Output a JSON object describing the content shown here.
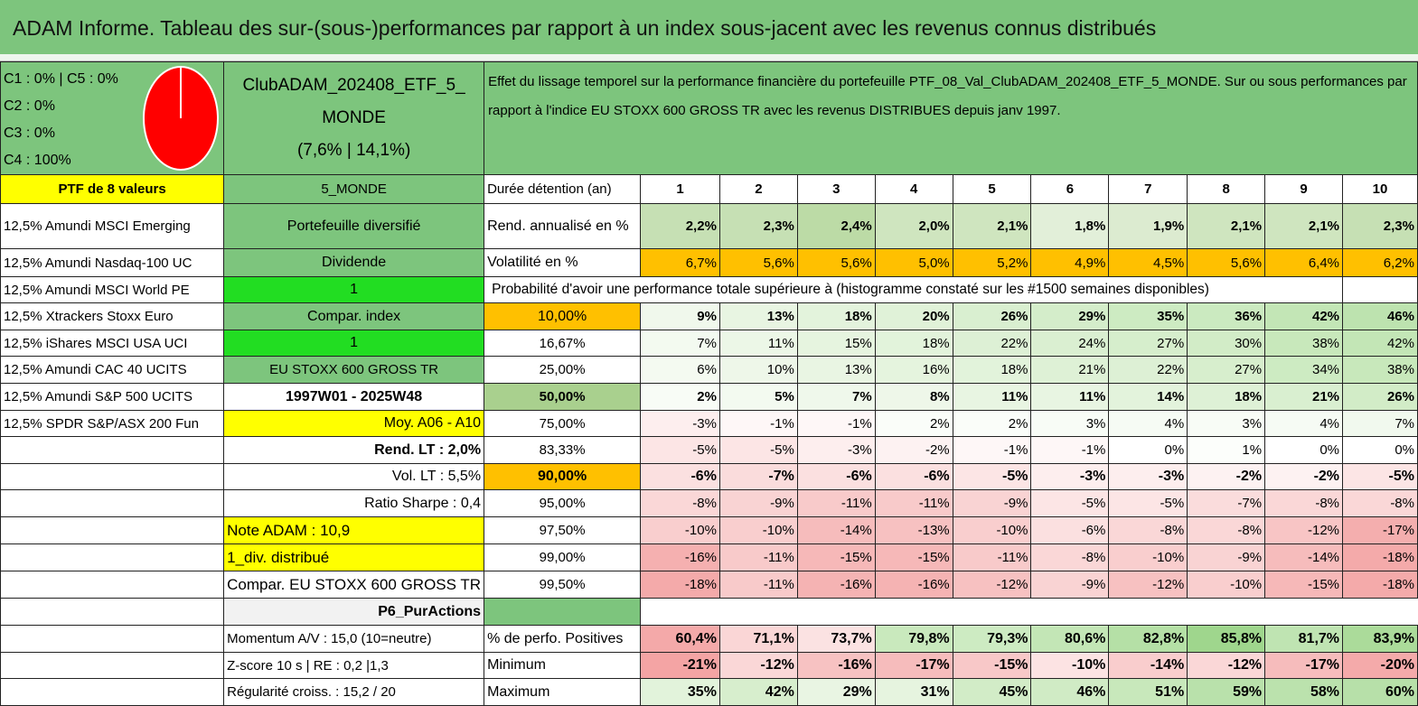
{
  "title": "ADAM Informe. Tableau des sur-(sous-)performances par rapport à un index sous-jacent avec les revenus connus distribués",
  "allocation": {
    "lines": [
      "C1 : 0% | C5 : 0%",
      "C2 : 0%",
      "C3 : 0%",
      "C4 : 100%"
    ],
    "pie_color": "#ff0000",
    "c4_share": 1.0
  },
  "portfolio": {
    "name_line1": "ClubADAM_202408_ETF_5_",
    "name_line2": "MONDE",
    "name_line3": "(7,6% | 14,1%)",
    "header": "PTF de 8 valeurs",
    "code": "5_MONDE",
    "holdings": [
      "12,5% Amundi MSCI Emerging",
      "12,5% Amundi Nasdaq-100 UC",
      "12,5% Amundi MSCI World PE",
      "12,5% Xtrackers Stoxx Euro",
      "12,5% iShares MSCI USA UCI",
      "12,5% Amundi CAC 40 UCITS",
      "12,5% Amundi S&P 500 UCITS",
      "12,5% SPDR S&P/ASX 200 Fun"
    ]
  },
  "description": "Effet du lissage temporel sur la performance financière du portefeuille PTF_08_Val_ClubADAM_202408_ETF_5_MONDE. Sur ou sous performances par rapport à l'indice EU STOXX 600 GROSS TR avec les revenus DISTRIBUES depuis janv 1997.",
  "info": {
    "diversified": "Portefeuille diversifié",
    "dividend": "Dividende",
    "one_a": "1",
    "compar_index": "Compar. index",
    "one_b": "1",
    "index_name": "EU STOXX 600 GROSS TR",
    "period": "1997W01 - 2025W48",
    "moy": "Moy. A06 - A10",
    "rend_lt": "Rend. LT : 2,0%",
    "vol_lt": "Vol. LT : 5,5%",
    "sharpe": "Ratio Sharpe : 0,4",
    "note": "Note ADAM : 10,9",
    "div_distrib": "1_div. distribué",
    "compar_full": "Compar. EU STOXX 600 GROSS TR",
    "p6": "P6_PurActions",
    "momentum": "Momentum A/V : 15,0 (10=neutre)",
    "zscore": "Z-score 10 s | RE : 0,2 |1,3",
    "regularite": "Régularité croiss. : 15,2 / 20"
  },
  "stats": {
    "duree_label": "Durée détention (an)",
    "years": [
      "1",
      "2",
      "3",
      "4",
      "5",
      "6",
      "7",
      "8",
      "9",
      "10"
    ],
    "rend_label": "Rend. annualisé en %",
    "rend": [
      "2,2%",
      "2,3%",
      "2,4%",
      "2,0%",
      "2,1%",
      "1,8%",
      "1,9%",
      "2,1%",
      "2,1%",
      "2,3%"
    ],
    "vol_label": "Volatilité en %",
    "vol": [
      "6,7%",
      "5,6%",
      "5,6%",
      "5,0%",
      "5,2%",
      "4,9%",
      "4,5%",
      "5,6%",
      "6,4%",
      "6,2%"
    ],
    "prob_label": "Probabilité d'avoir une performance totale supérieure à (histogramme constaté sur les #1500 semaines disponibles)"
  },
  "percentiles": [
    {
      "label": "10,00%",
      "values": [
        "9%",
        "13%",
        "18%",
        "20%",
        "26%",
        "29%",
        "35%",
        "36%",
        "42%",
        "46%"
      ]
    },
    {
      "label": "16,67%",
      "values": [
        "7%",
        "11%",
        "15%",
        "18%",
        "22%",
        "24%",
        "27%",
        "30%",
        "38%",
        "42%"
      ]
    },
    {
      "label": "25,00%",
      "values": [
        "6%",
        "10%",
        "13%",
        "16%",
        "18%",
        "21%",
        "22%",
        "27%",
        "34%",
        "38%"
      ]
    },
    {
      "label": "50,00%",
      "values": [
        "2%",
        "5%",
        "7%",
        "8%",
        "11%",
        "11%",
        "14%",
        "18%",
        "21%",
        "26%"
      ]
    },
    {
      "label": "75,00%",
      "values": [
        "-3%",
        "-1%",
        "-1%",
        "2%",
        "2%",
        "3%",
        "4%",
        "3%",
        "4%",
        "7%"
      ]
    },
    {
      "label": "83,33%",
      "values": [
        "-5%",
        "-5%",
        "-3%",
        "-2%",
        "-1%",
        "-1%",
        "0%",
        "1%",
        "0%",
        "0%"
      ]
    },
    {
      "label": "90,00%",
      "values": [
        "-6%",
        "-7%",
        "-6%",
        "-6%",
        "-5%",
        "-3%",
        "-3%",
        "-2%",
        "-2%",
        "-5%"
      ]
    },
    {
      "label": "95,00%",
      "values": [
        "-8%",
        "-9%",
        "-11%",
        "-11%",
        "-9%",
        "-5%",
        "-5%",
        "-7%",
        "-8%",
        "-8%"
      ]
    },
    {
      "label": "97,50%",
      "values": [
        "-10%",
        "-10%",
        "-14%",
        "-13%",
        "-10%",
        "-6%",
        "-8%",
        "-8%",
        "-12%",
        "-17%"
      ]
    },
    {
      "label": "99,00%",
      "values": [
        "-16%",
        "-11%",
        "-15%",
        "-15%",
        "-11%",
        "-8%",
        "-10%",
        "-9%",
        "-14%",
        "-18%"
      ]
    },
    {
      "label": "99,50%",
      "values": [
        "-18%",
        "-11%",
        "-16%",
        "-16%",
        "-12%",
        "-9%",
        "-12%",
        "-10%",
        "-15%",
        "-18%"
      ]
    }
  ],
  "summary": {
    "pos_label": "% de perfo. Positives",
    "pos": [
      "60,4%",
      "71,1%",
      "73,7%",
      "79,8%",
      "79,3%",
      "80,6%",
      "82,8%",
      "85,8%",
      "81,7%",
      "83,9%"
    ],
    "min_label": "Minimum",
    "min": [
      "-21%",
      "-12%",
      "-16%",
      "-17%",
      "-15%",
      "-10%",
      "-14%",
      "-12%",
      "-17%",
      "-20%"
    ],
    "max_label": "Maximum",
    "max": [
      "35%",
      "42%",
      "29%",
      "31%",
      "45%",
      "46%",
      "51%",
      "59%",
      "58%",
      "60%"
    ]
  }
}
